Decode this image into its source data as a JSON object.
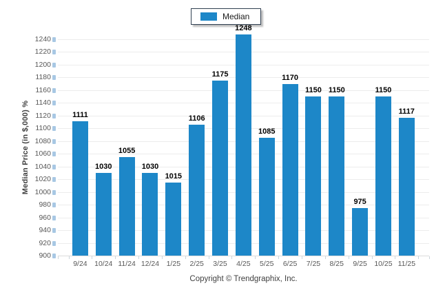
{
  "legend": {
    "label": "Median"
  },
  "y_axis": {
    "title": "Median Price (in $,000) %"
  },
  "footer": {
    "copyright": "Copyright © Trendgraphix, Inc."
  },
  "colors": {
    "bar": "#1d87c8",
    "grid": "#ececec",
    "axis_baseline": "#dcdcdc",
    "y_tick": "#a8c8e4",
    "x_tick": "#ccd4da",
    "tick_label": "#575757",
    "value_label": "#000000",
    "legend_border": "#2f3f50"
  },
  "chart_data": {
    "type": "bar",
    "series_name": "Median",
    "categories": [
      "9/24",
      "10/24",
      "11/24",
      "12/24",
      "1/25",
      "2/25",
      "3/25",
      "4/25",
      "5/25",
      "6/25",
      "7/25",
      "8/25",
      "9/25",
      "10/25",
      "11/25"
    ],
    "values": [
      1111,
      1030,
      1055,
      1030,
      1015,
      1106,
      1175,
      1248,
      1085,
      1170,
      1150,
      1150,
      975,
      1150,
      1117
    ],
    "title": "",
    "xlabel": "",
    "ylabel": "Median Price (in $,000) %",
    "ylim": [
      900,
      1240
    ],
    "ytick_step": 20,
    "grid": "horizontal",
    "legend_position": "top-center"
  }
}
